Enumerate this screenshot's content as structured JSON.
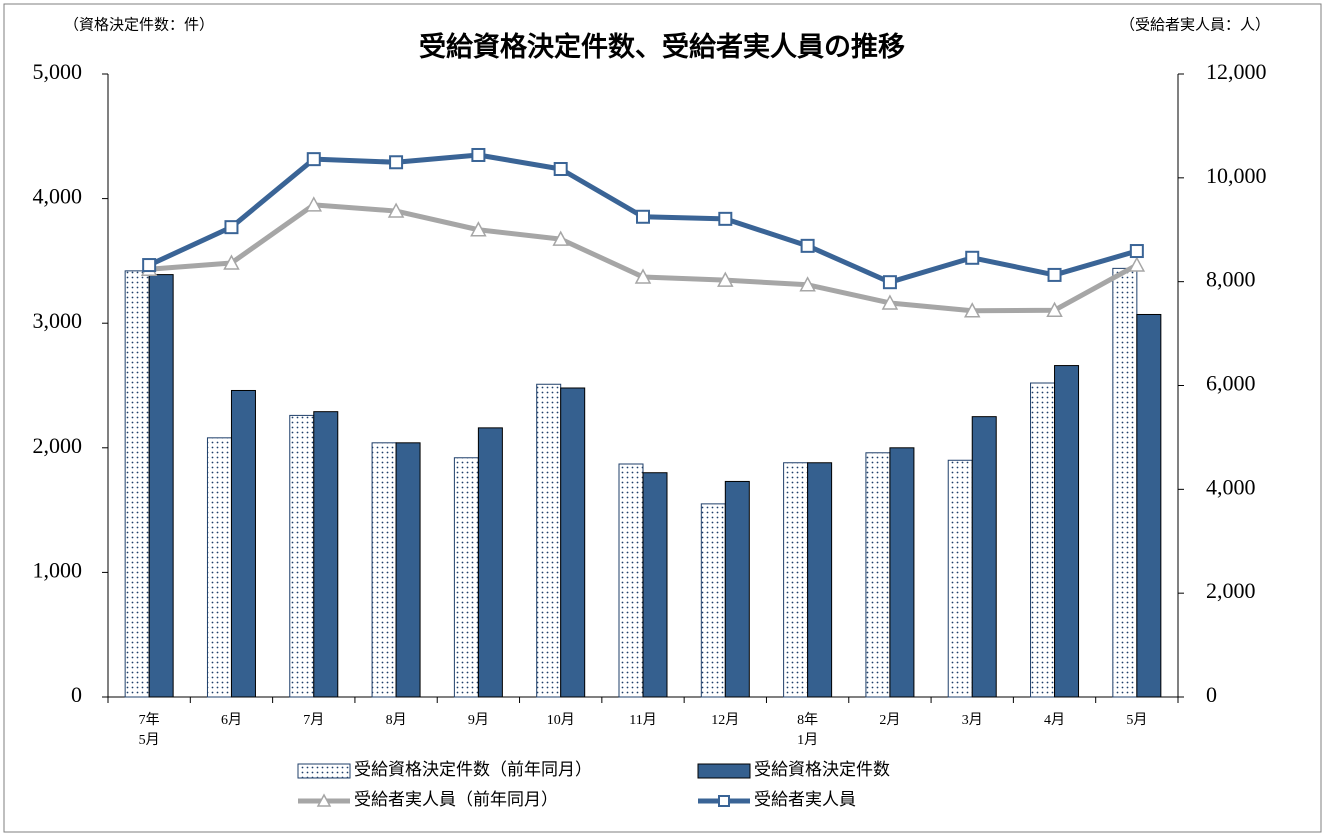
{
  "chart_data": {
    "type": "combo",
    "title": "受給資格決定件数、受給者実人員の推移",
    "y_label": "（資格決定件数：件）",
    "y2_label": "（受給者実人員：人）",
    "categories": [
      "7年\n5月",
      "6月",
      "7月",
      "8月",
      "9月",
      "10月",
      "11月",
      "12月",
      "8年\n1月",
      "2月",
      "3月",
      "4月",
      "5月"
    ],
    "ylim": [
      0,
      5000
    ],
    "yticks": [
      0,
      {
        "value": 1000,
        "label": "1,000"
      },
      {
        "value": 2000,
        "label": "2,000"
      },
      {
        "value": 3000,
        "label": "3,000"
      },
      {
        "value": 4000,
        "label": "4,000"
      },
      {
        "value": 5000,
        "label": "5,000"
      }
    ],
    "y2lim": [
      0,
      12000
    ],
    "y2ticks": [
      0,
      {
        "value": 2000,
        "label": "2,000"
      },
      {
        "value": 4000,
        "label": "4,000"
      },
      {
        "value": 6000,
        "label": "6,000"
      },
      {
        "value": 8000,
        "label": "8,000"
      },
      {
        "value": 10000,
        "label": "10,000"
      },
      {
        "value": 12000,
        "label": "12,000"
      }
    ],
    "series": [
      {
        "name": "受給資格決定件数（前年同月）",
        "type": "bar",
        "pattern": "dots",
        "color": "#1f3f6a",
        "values": [
          3420,
          2080,
          2260,
          2040,
          1920,
          2510,
          1870,
          1550,
          1880,
          1960,
          1900,
          2520,
          3440
        ]
      },
      {
        "name": "受給資格決定件数",
        "type": "bar",
        "color": "#35608f",
        "values": [
          3390,
          2460,
          2290,
          2040,
          2160,
          2480,
          1800,
          1730,
          1880,
          2000,
          2250,
          2660,
          3070
        ]
      },
      {
        "name": "受給者実人員（前年同月）",
        "type": "line",
        "axis": "y2",
        "marker": "triangle",
        "color": "#a6a6a6",
        "values": [
          8240,
          8360,
          9480,
          9360,
          9000,
          8820,
          8090,
          8030,
          7940,
          7590,
          7440,
          7450,
          8320
        ]
      },
      {
        "name": "受給者実人員",
        "type": "line",
        "axis": "y2",
        "marker": "square",
        "color": "#3a6496",
        "values": [
          8320,
          9050,
          10360,
          10300,
          10440,
          10170,
          9250,
          9210,
          8690,
          7990,
          8460,
          8130,
          8590
        ]
      }
    ]
  }
}
